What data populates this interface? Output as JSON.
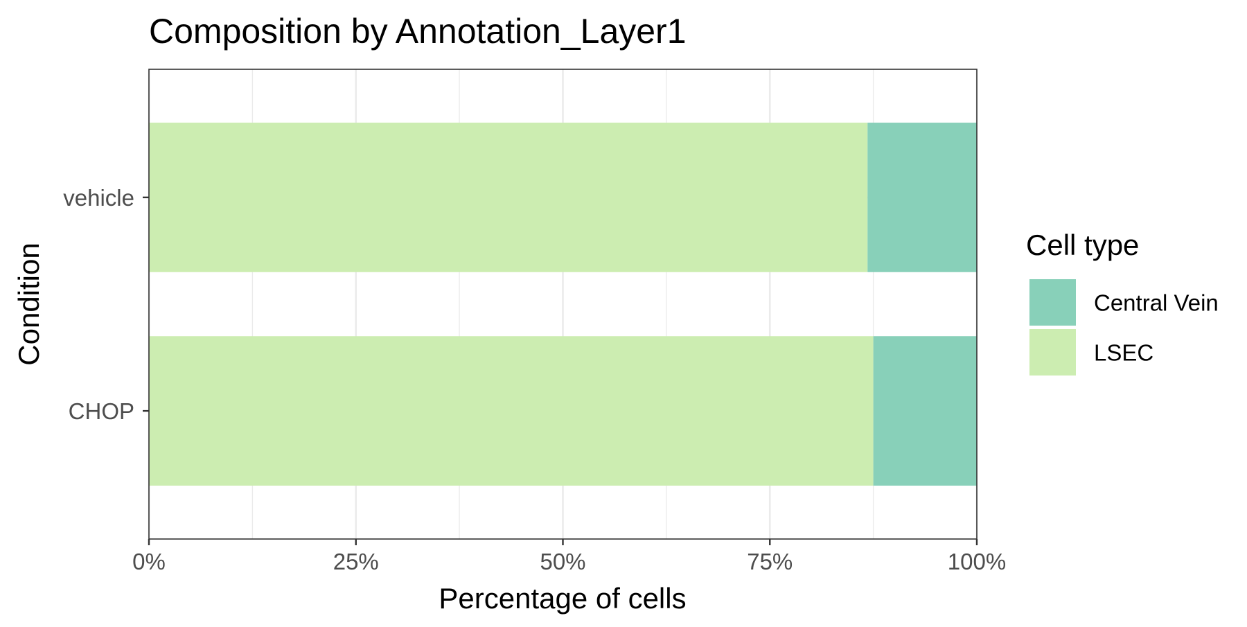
{
  "chart_data": {
    "type": "bar",
    "orientation": "horizontal",
    "stacked": "percent",
    "title": "Composition by Annotation_Layer1",
    "xlabel": "Percentage of cells",
    "ylabel": "Condition",
    "categories": [
      "CHOP",
      "vehicle"
    ],
    "series": [
      {
        "name": "LSEC",
        "color": "#CCEDB1",
        "values": [
          87.5,
          86.8
        ]
      },
      {
        "name": "Central Vein",
        "color": "#88D0B9",
        "values": [
          12.5,
          13.2
        ]
      }
    ],
    "xlim": [
      0,
      100
    ],
    "x_ticks": [
      0,
      25,
      50,
      75,
      100
    ],
    "x_tick_labels": [
      "0%",
      "25%",
      "50%",
      "75%",
      "100%"
    ],
    "grid": true,
    "legend": {
      "title": "Cell type",
      "position": "right",
      "entries": [
        {
          "name": "Central Vein",
          "color": "#88D0B9"
        },
        {
          "name": "LSEC",
          "color": "#CCEDB1"
        }
      ]
    }
  }
}
